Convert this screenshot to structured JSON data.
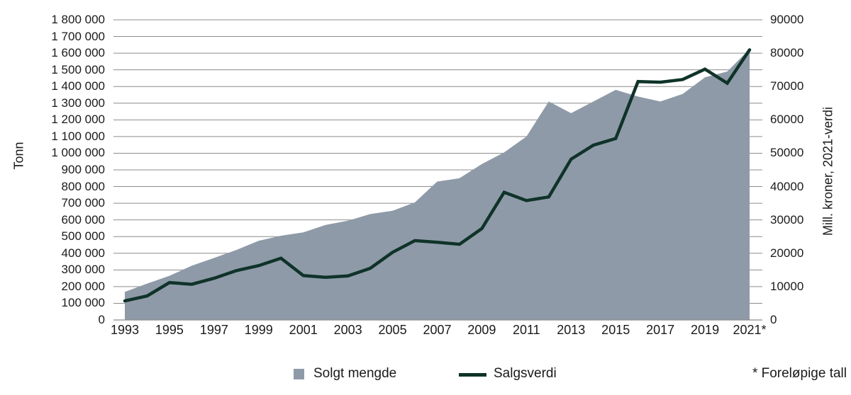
{
  "footnote": "* Foreløpige tall",
  "legend": {
    "items": [
      {
        "label": "Solgt mengde",
        "swatch": "square"
      },
      {
        "label": "Salgsverdi",
        "swatch": "line"
      }
    ]
  },
  "chart_data": {
    "type": "area+line",
    "grid": true,
    "legend_position": "bottom",
    "colors": {
      "area": "#8F9AA8",
      "line": "#0F3329",
      "grid": "#8C8C8C",
      "text": "#1A1A1A"
    },
    "x": [
      1993,
      1994,
      1995,
      1996,
      1997,
      1998,
      1999,
      2000,
      2001,
      2002,
      2003,
      2004,
      2005,
      2006,
      2007,
      2008,
      2009,
      2010,
      2011,
      2012,
      2013,
      2014,
      2015,
      2016,
      2017,
      2018,
      2019,
      2020,
      2021
    ],
    "x_tick_labels": [
      "1993",
      "1995",
      "1997",
      "1999",
      "2001",
      "2003",
      "2005",
      "2007",
      "2009",
      "2011",
      "2013",
      "2015",
      "2017",
      "2019",
      "2021*"
    ],
    "series": [
      {
        "name": "Solgt mengde",
        "type": "area",
        "axis": "left",
        "unit": "tonn",
        "values": [
          168000,
          218000,
          265000,
          325000,
          372000,
          420000,
          475000,
          505000,
          525000,
          570000,
          595000,
          635000,
          655000,
          705000,
          830000,
          850000,
          935000,
          1005000,
          1100000,
          1310000,
          1240000,
          1310000,
          1380000,
          1340000,
          1310000,
          1355000,
          1455000,
          1490000,
          1625000
        ]
      },
      {
        "name": "Salgsverdi",
        "type": "line",
        "axis": "right",
        "unit": "mill. kroner, 2021-verdi",
        "values": [
          5700,
          7200,
          11200,
          10700,
          12500,
          14800,
          16300,
          18500,
          13300,
          12800,
          13200,
          15500,
          20300,
          23800,
          23300,
          22700,
          27400,
          38300,
          35800,
          36900,
          48200,
          52400,
          54400,
          71500,
          71300,
          72100,
          75200,
          71000,
          81000
        ]
      }
    ],
    "left_axis": {
      "title": "Tonn",
      "min": 0,
      "max": 1800000,
      "tick_step": 100000,
      "tick_labels": [
        "1 800 000",
        "1 700 000",
        "1 600 000",
        "1 500 000",
        "1 400 000",
        "1 300 000",
        "1 200 000",
        "1 100 000",
        "1 000 000",
        "900 000",
        "800 000",
        "700 000",
        "600 000",
        "500 000",
        "400 000",
        "300 000",
        "200 000",
        "100 000",
        "0"
      ]
    },
    "right_axis": {
      "title": "Mill. kroner, 2021-verdi",
      "min": 0,
      "max": 90000,
      "tick_step": 10000,
      "tick_labels": [
        "90000",
        "80000",
        "70000",
        "60000",
        "50000",
        "40000",
        "30000",
        "20000",
        "10000",
        "0"
      ]
    }
  }
}
